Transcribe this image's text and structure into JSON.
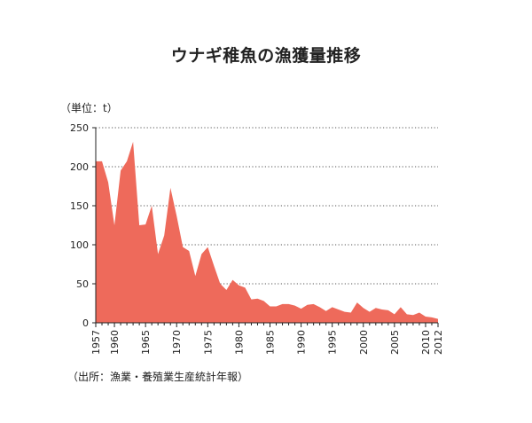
{
  "chart_data": {
    "type": "area",
    "title": "ウナギ稚魚の漁獲量推移",
    "unit_label": "（単位：t）",
    "source": "（出所：漁業・養殖業生産統計年報）",
    "ylim": [
      0,
      250
    ],
    "y_ticks": [
      0,
      50,
      100,
      150,
      200,
      250
    ],
    "x_ticks": [
      1957,
      1960,
      1965,
      1970,
      1975,
      1980,
      1985,
      1990,
      1995,
      2000,
      2005,
      2010,
      2012
    ],
    "x_range": [
      1957,
      2012
    ],
    "grid": "horizontal-dotted",
    "colors": {
      "area": "#ee6a5b",
      "axis": "#222222",
      "grid": "#555555"
    },
    "series": [
      {
        "x": [
          1957,
          1958,
          1959,
          1960,
          1961,
          1962,
          1963,
          1964,
          1965,
          1966,
          1967,
          1968,
          1969,
          1970,
          1971,
          1972,
          1973,
          1974,
          1975,
          1976,
          1977,
          1978,
          1979,
          1980,
          1981,
          1982,
          1983,
          1984,
          1985,
          1986,
          1987,
          1988,
          1989,
          1990,
          1991,
          1992,
          1993,
          1994,
          1995,
          1996,
          1997,
          1998,
          1999,
          2000,
          2001,
          2002,
          2003,
          2004,
          2005,
          2006,
          2007,
          2008,
          2009,
          2010,
          2011,
          2012
        ],
        "values": [
          207,
          207,
          180,
          125,
          195,
          207,
          232,
          125,
          126,
          150,
          88,
          112,
          173,
          137,
          97,
          92,
          60,
          88,
          97,
          73,
          50,
          42,
          55,
          48,
          45,
          30,
          31,
          28,
          21,
          21,
          24,
          24,
          22,
          18,
          23,
          24,
          20,
          15,
          20,
          17,
          14,
          13,
          26,
          19,
          14,
          19,
          17,
          16,
          11,
          20,
          11,
          10,
          13,
          8,
          7,
          5
        ]
      }
    ]
  }
}
